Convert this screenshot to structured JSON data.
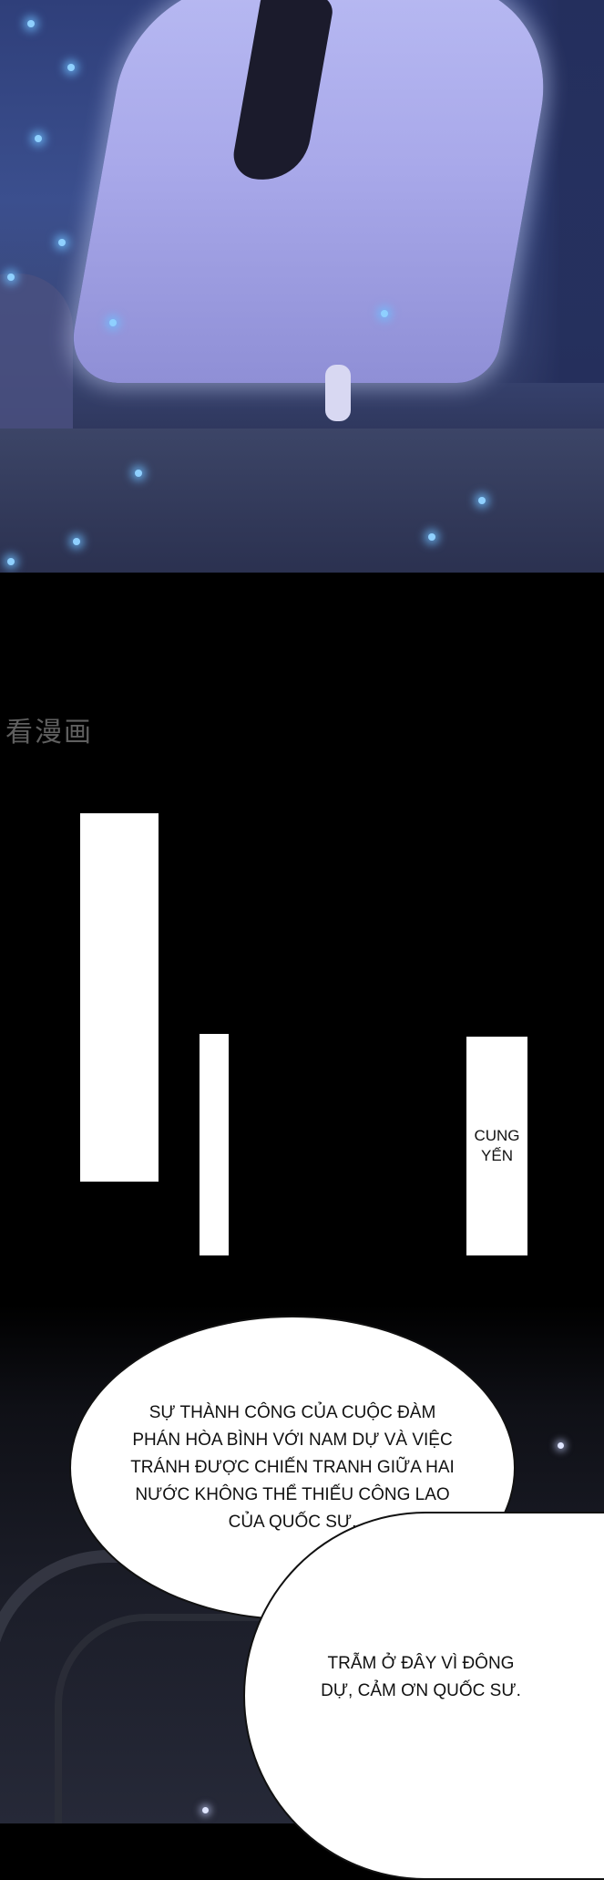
{
  "watermark": "看漫画",
  "captions": {
    "box3_text": "CUNG\nYẾN"
  },
  "speech": {
    "bubble1": "SỰ THÀNH CÔNG CỦA CUỘC ĐÀM PHÁN HÒA BÌNH VỚI NAM DỰ VÀ VIỆC TRÁNH ĐƯỢC CHIẾN TRANH GIỮA HAI NƯỚC KHÔNG THỂ THIẾU CÔNG LAO CỦA QUỐC SƯ,",
    "bubble2": "TRẪM Ở ĐÂY VÌ ĐÔNG DỰ, CẢM ƠN QUỐC SƯ."
  },
  "colors": {
    "night_sky": "#3b4f8e",
    "robe": "#a9a9ea",
    "firefly": "#8fd0ff"
  }
}
